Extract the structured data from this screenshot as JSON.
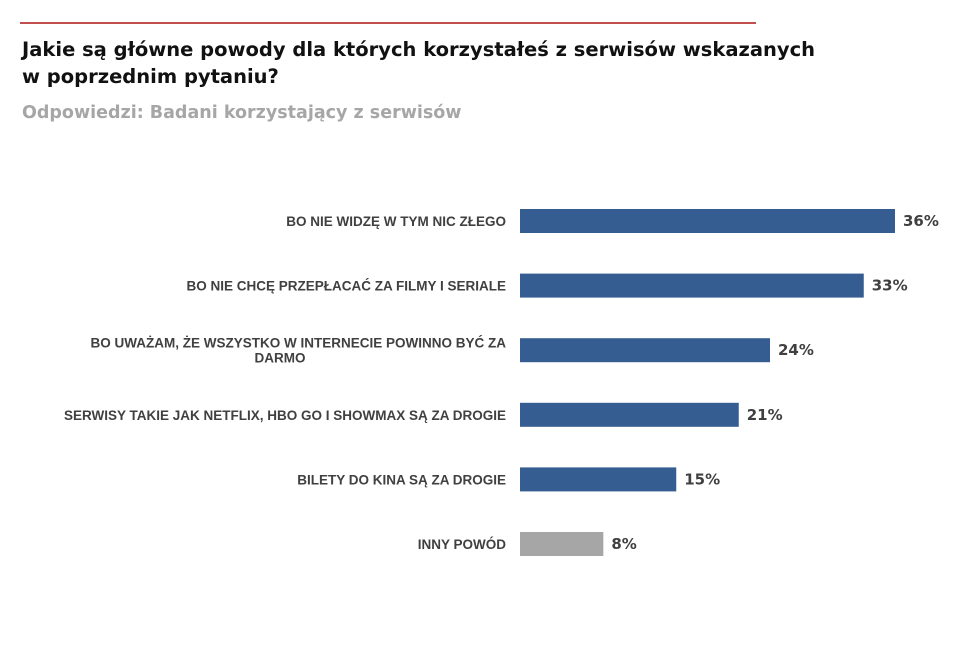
{
  "header": {
    "title": "Jakie są główne powody dla których korzystałeś z serwisów wskazanych\nw poprzednim pytaniu?",
    "subtitle": "Odpowiedzi: Badani korzystający z serwisów"
  },
  "colors": {
    "accent_rule": "#c0504d",
    "bar_primary": "#355d91",
    "bar_other": "#a6a6a6"
  },
  "chart_data": {
    "type": "bar",
    "orientation": "horizontal",
    "categories": [
      [
        "BO NIE WIDZĘ W TYM NIC ZŁEGO"
      ],
      [
        "BO NIE CHCĘ PRZEPŁACAĆ ZA FILMY I SERIALE"
      ],
      [
        "BO UWAŻAM, ŻE WSZYSTKO W INTERNECIE POWINNO BYĆ ZA",
        "DARMO"
      ],
      [
        "SERWISY TAKIE JAK NETFLIX, HBO GO I SHOWMAX SĄ ZA DROGIE"
      ],
      [
        "BILETY DO KINA SĄ ZA DROGIE"
      ],
      [
        "INNY POWÓD"
      ]
    ],
    "values": [
      36,
      33,
      24,
      21,
      15,
      8
    ],
    "value_labels": [
      "36%",
      "33%",
      "24%",
      "21%",
      "15%",
      "8%"
    ],
    "bar_colors": [
      "#355d91",
      "#355d91",
      "#355d91",
      "#355d91",
      "#355d91",
      "#a6a6a6"
    ],
    "unit": "%",
    "xlim": [
      0,
      36
    ],
    "grid": false,
    "legend": "none"
  }
}
